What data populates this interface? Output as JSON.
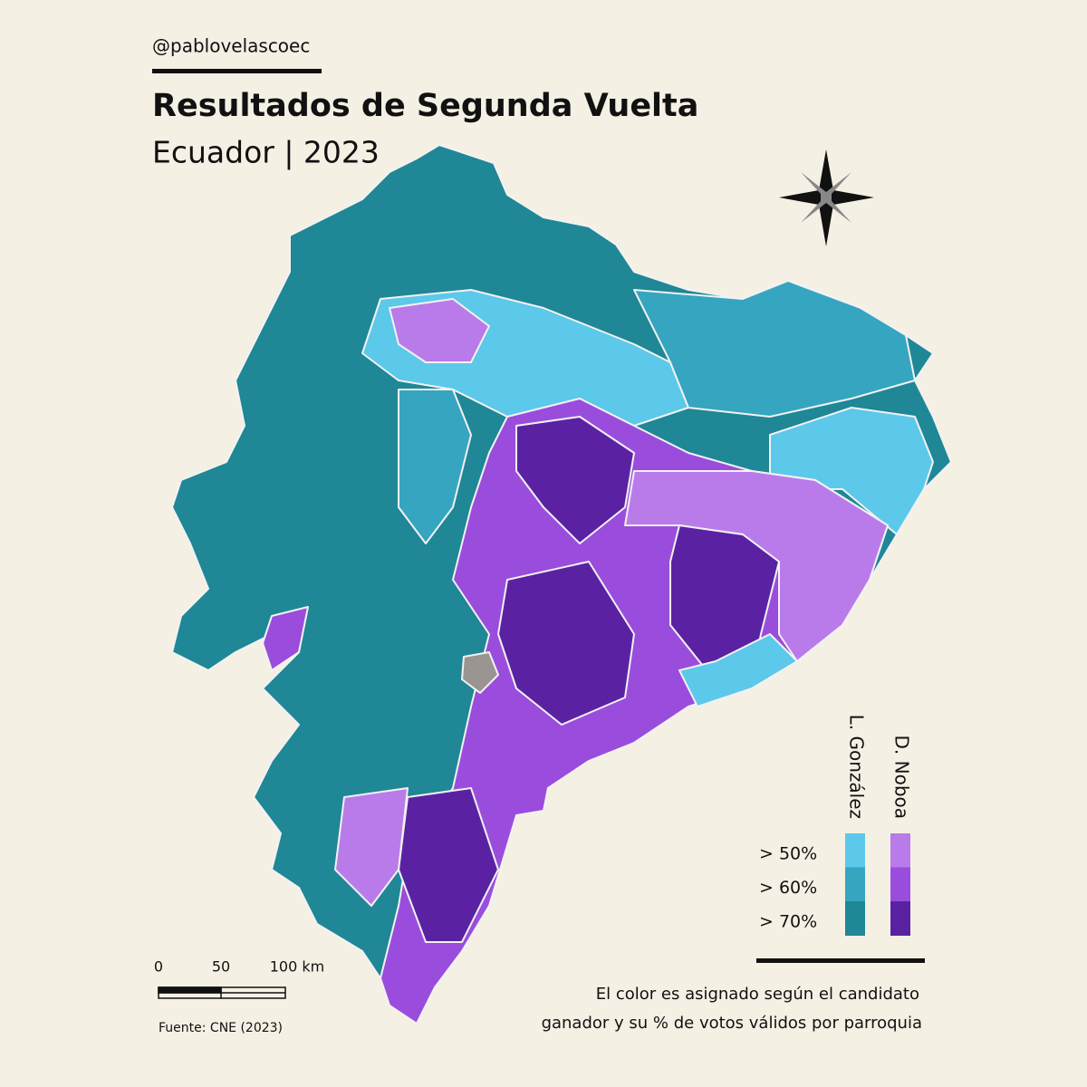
{
  "header": {
    "handle": "@pablovelascoec",
    "title": "Resultados de Segunda Vuelta",
    "subtitle": "Ecuador | 2023"
  },
  "legend": {
    "candidates": [
      {
        "name": "L. González",
        "colors": [
          "#5cc8ea",
          "#35a5c0",
          "#1f8796"
        ]
      },
      {
        "name": "D. Noboa",
        "colors": [
          "#b97bea",
          "#9a4ddc",
          "#5a22a3"
        ]
      }
    ],
    "thresholds": [
      "> 50%",
      "> 60%",
      "> 70%"
    ]
  },
  "scale_bar": {
    "labels": [
      "0",
      "50",
      "100 km"
    ]
  },
  "source": "Fuente: CNE (2023)",
  "caption": [
    "El color es asignado según el candidato",
    "ganador y su % de votos válidos por parroquia"
  ]
}
